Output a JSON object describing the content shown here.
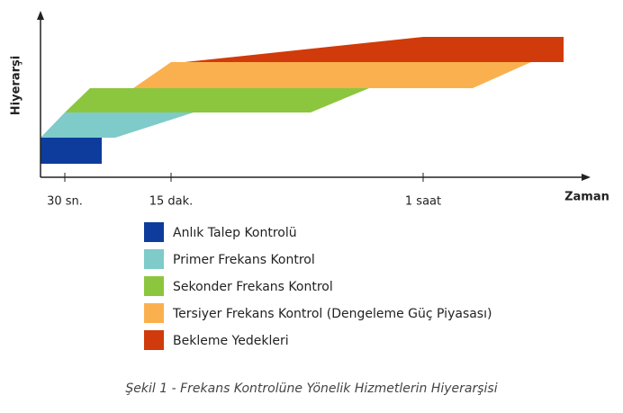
{
  "axes": {
    "y_label": "Hiyerarşi",
    "x_label": "Zaman",
    "x_ticks": [
      "30 sn.",
      "15 dak.",
      "1 saat"
    ]
  },
  "legend": [
    {
      "label": "Anlık Talep Kontrolü",
      "color": "#0d3c9c"
    },
    {
      "label": "Primer Frekans Kontrol",
      "color": "#7ecbc9"
    },
    {
      "label": "Sekonder Frekans Kontrol",
      "color": "#8cc63f"
    },
    {
      "label": "Tersiyer Frekans Kontrol (Dengeleme Güç Piyasası)",
      "color": "#fbb04f"
    },
    {
      "label": "Bekleme Yedekleri",
      "color": "#d13a0b"
    }
  ],
  "caption": "Şekil 1 - Frekans Kontrolüne Yönelik Hizmetlerin Hiyerarşisi"
}
